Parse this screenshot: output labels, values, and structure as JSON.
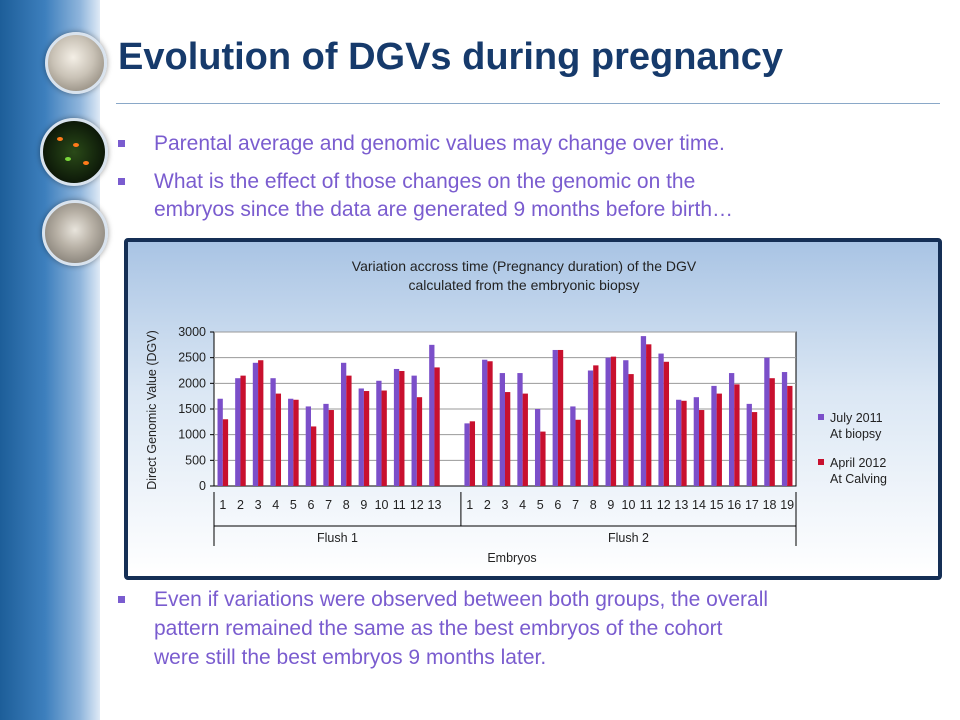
{
  "slide": {
    "title": "Evolution of DGVs during pregnancy",
    "bullets": [
      [
        "Parental average and genomic values may change over time."
      ],
      [
        "What is the effect of those changes on the genomic on the",
        "embryos since the data are generated 9 months before birth…"
      ],
      [
        "Even if variations were observed between both groups, the overall",
        "pattern remained the same as the best embryos of the cohort",
        "were still the best embryos 9 months later."
      ]
    ]
  },
  "colors": {
    "title": "#163a6b",
    "bullet": "#7a5ccf",
    "series1": "#7b4fc9",
    "series2": "#c8102e",
    "chart_border": "#152f55"
  },
  "icons": [
    "lab-photo-bubble",
    "sperm-microscopy-bubble",
    "petri-dish-bubble"
  ],
  "chart_data": {
    "type": "bar",
    "title": [
      "Variation accross time (Pregnancy duration) of the DGV",
      "calculated from the embryonic biopsy"
    ],
    "ylabel": "Direct Genomic Value (DGV)",
    "xlabel": "Embryos",
    "ylim": [
      0,
      3000
    ],
    "yticks": [
      0,
      500,
      1000,
      1500,
      2000,
      2500,
      3000
    ],
    "grid": true,
    "legend_position": "right",
    "groups": [
      {
        "name": "Flush 1",
        "categories": [
          "1",
          "2",
          "3",
          "4",
          "5",
          "6",
          "7",
          "8",
          "9",
          "10",
          "11",
          "12",
          "13"
        ]
      },
      {
        "name": "Flush 2",
        "categories": [
          "1",
          "2",
          "3",
          "4",
          "5",
          "6",
          "7",
          "8",
          "9",
          "10",
          "11",
          "12",
          "13",
          "14",
          "15",
          "16",
          "17",
          "18",
          "19"
        ]
      }
    ],
    "series": [
      {
        "name": [
          "July 2011",
          "At biopsy"
        ],
        "values": [
          1700,
          2100,
          2400,
          2100,
          1700,
          1550,
          1600,
          2400,
          1900,
          2050,
          2280,
          2150,
          2750,
          1220,
          2460,
          2200,
          2200,
          1500,
          2650,
          1550,
          2250,
          2500,
          2450,
          2920,
          2580,
          1680,
          1730,
          1950,
          2200,
          1600,
          2500,
          2220
        ]
      },
      {
        "name": [
          "April 2012",
          "At Calving"
        ],
        "values": [
          1300,
          2150,
          2450,
          1800,
          1680,
          1160,
          1480,
          2150,
          1850,
          1860,
          2240,
          1730,
          2310,
          1260,
          2430,
          1830,
          1800,
          1060,
          2650,
          1290,
          2350,
          2520,
          2180,
          2760,
          2420,
          1660,
          1480,
          1800,
          1980,
          1440,
          2100,
          1950
        ]
      }
    ]
  }
}
